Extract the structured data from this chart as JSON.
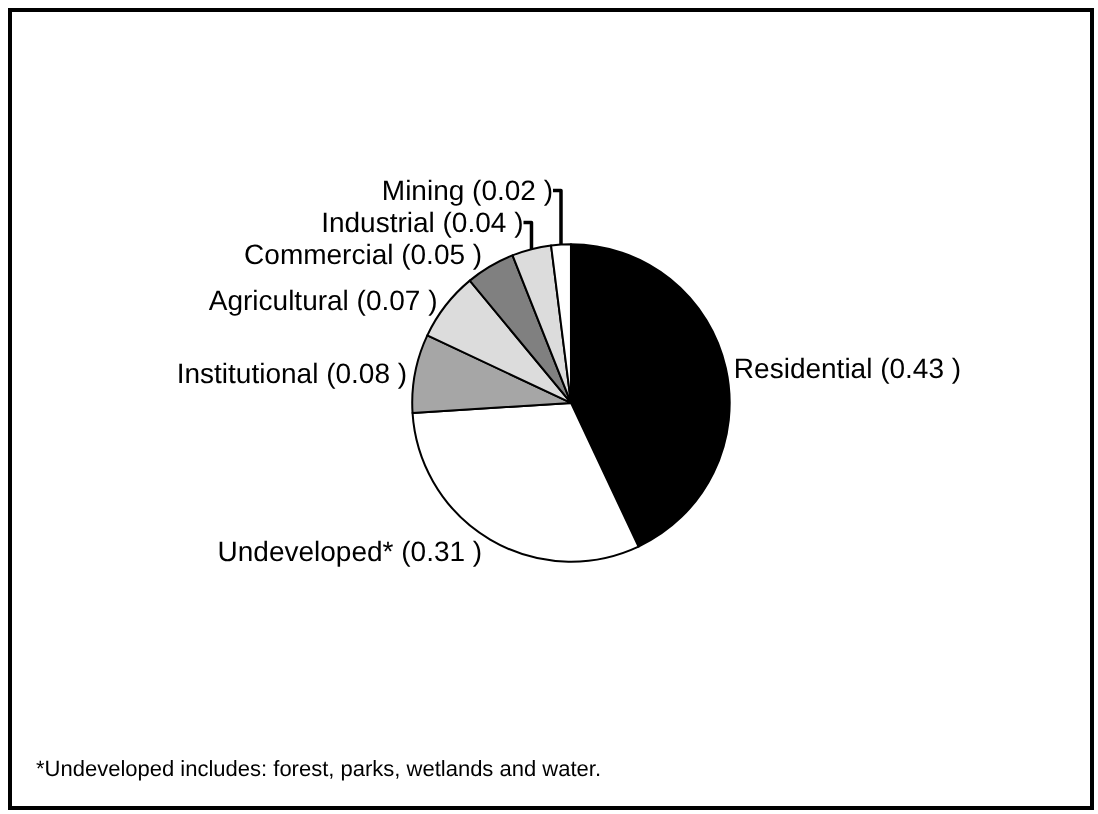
{
  "chart_data": {
    "type": "pie",
    "categories": [
      "Residential",
      "Undeveloped*",
      "Institutional",
      "Agricultural",
      "Commercial",
      "Industrial",
      "Mining"
    ],
    "values": [
      0.43,
      0.31,
      0.08,
      0.07,
      0.05,
      0.04,
      0.02
    ],
    "value_labels": [
      "(0.43 )",
      "(0.31 )",
      "(0.08 )",
      "(0.07 )",
      "(0.05 )",
      "(0.04 )",
      "(0.02 )"
    ],
    "colors": [
      "#000000",
      "#ffffff",
      "#a6a6a6",
      "#dcdcdc",
      "#808080",
      "#dcdcdc",
      "#ffffff"
    ],
    "annotations": [
      "*Undeveloped includes: forest, parks, wetlands and water."
    ],
    "legend": false
  }
}
